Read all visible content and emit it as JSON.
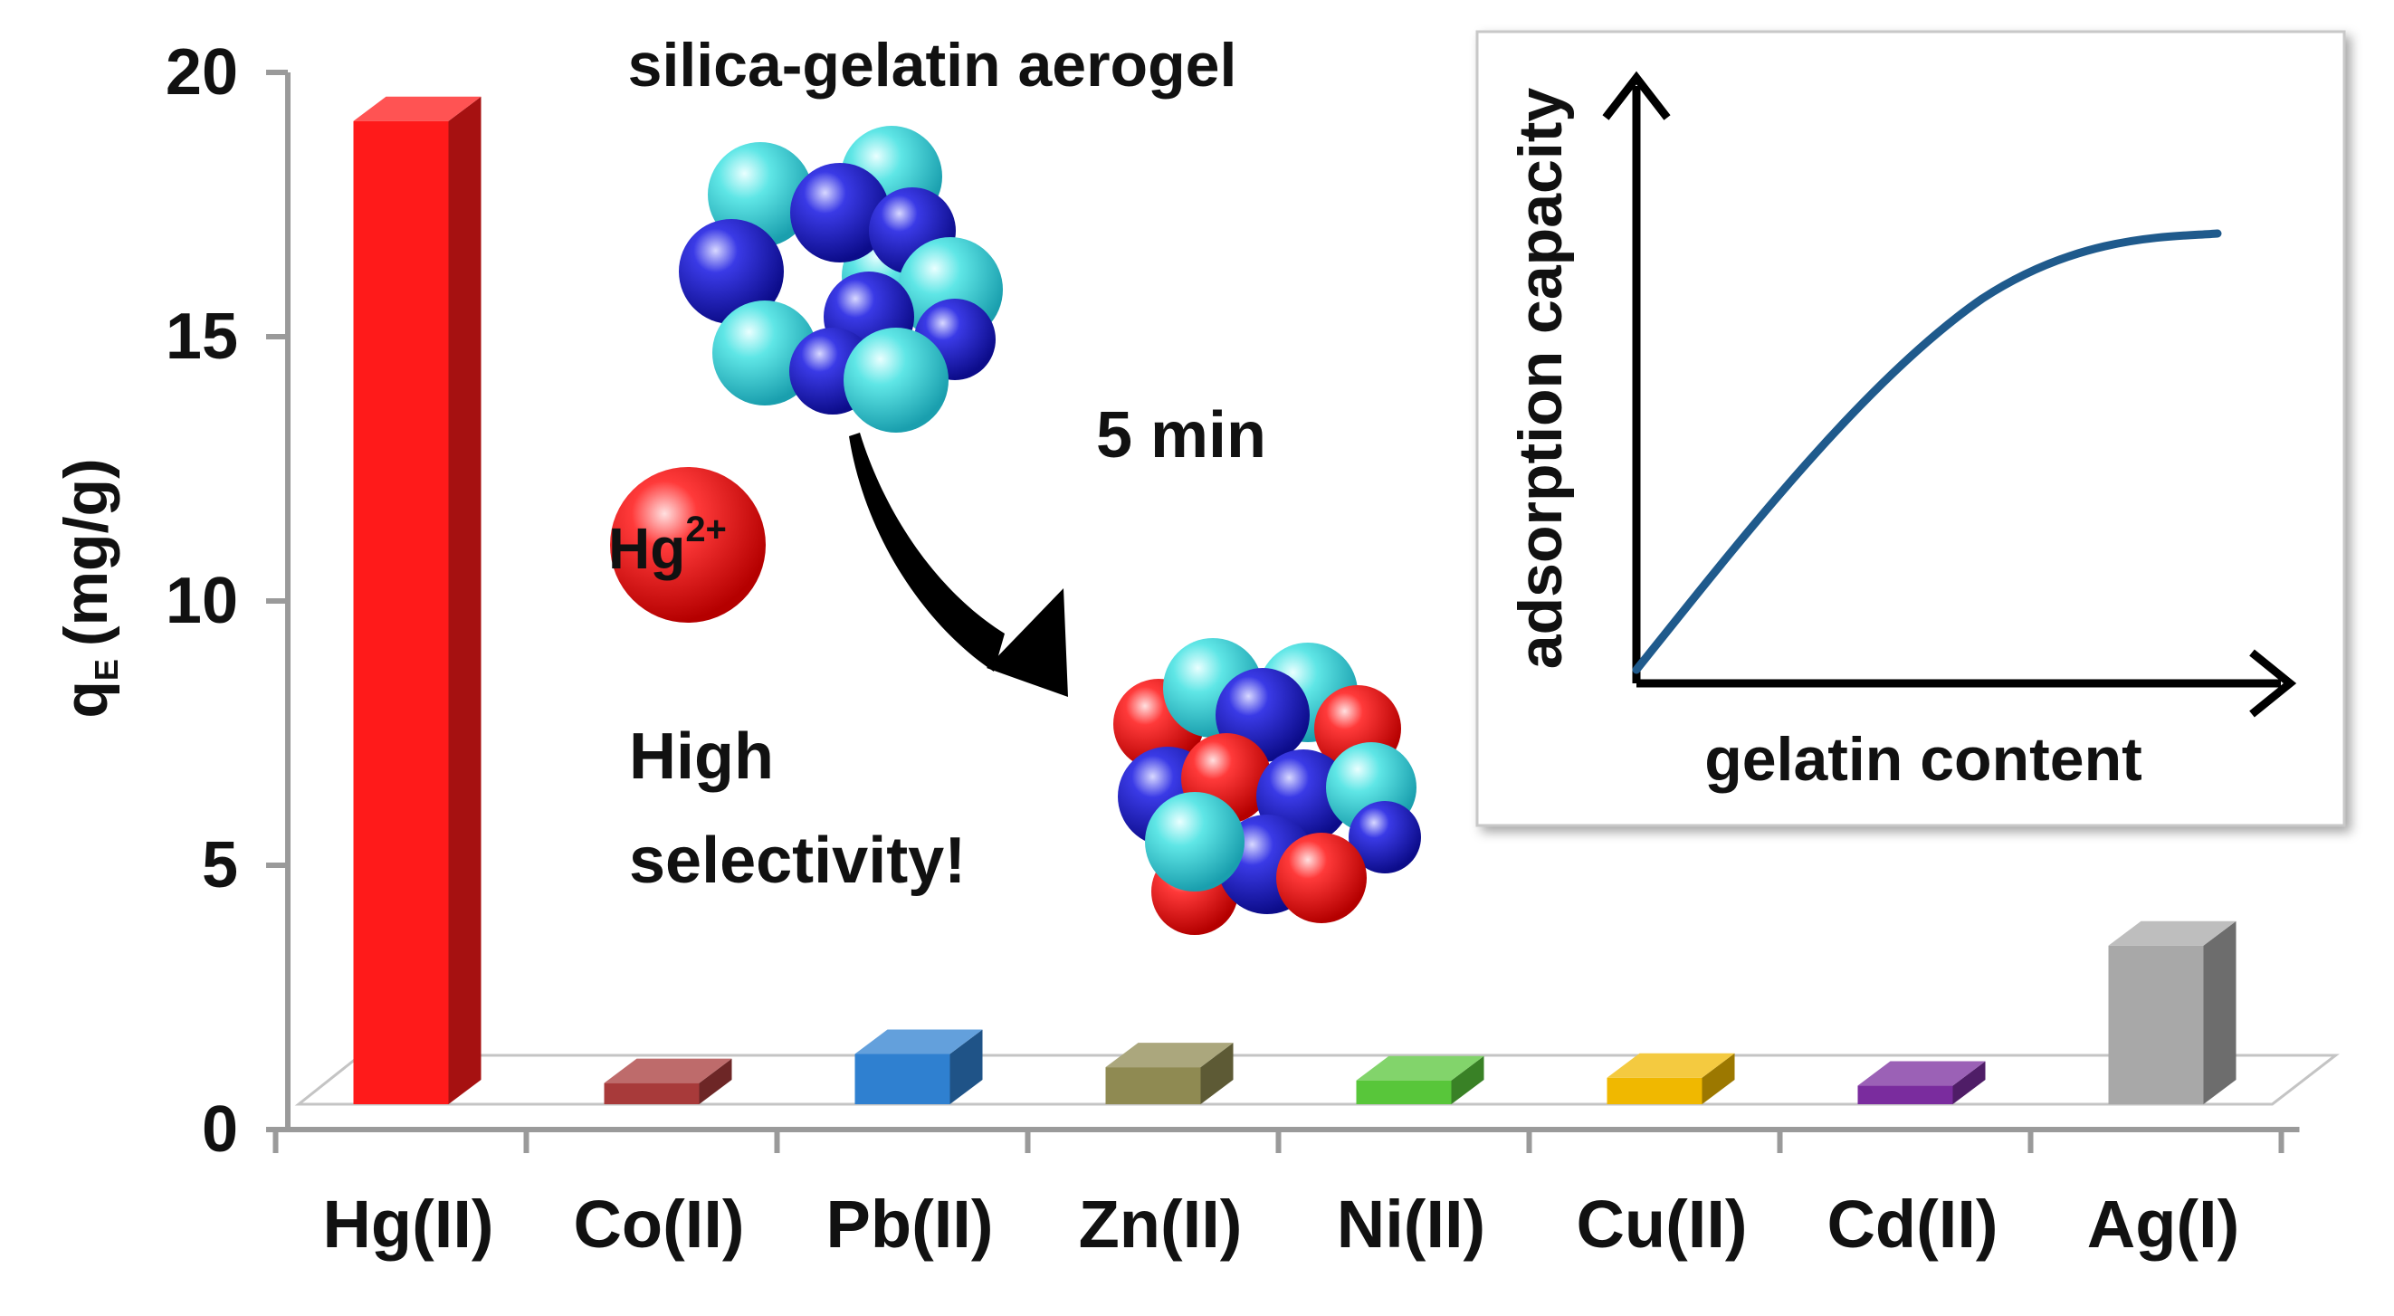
{
  "chart_data": {
    "type": "bar",
    "style": "3d",
    "categories": [
      "Hg(II)",
      "Co(II)",
      "Pb(II)",
      "Zn(II)",
      "Ni(II)",
      "Cu(II)",
      "Cd(II)",
      "Ag(I)"
    ],
    "values": [
      18.6,
      0.4,
      0.95,
      0.7,
      0.45,
      0.5,
      0.35,
      3.0
    ],
    "colors": [
      "#ff1a1a",
      "#a83a3a",
      "#2f80d0",
      "#8f8a52",
      "#58c63a",
      "#f0b800",
      "#7a2c9e",
      "#a8a8a8"
    ],
    "ylabel": "q",
    "ylabel_subscript": "E",
    "ylabel_unit": "(mg/g)",
    "ylim": [
      0,
      20
    ],
    "yticks": [
      0,
      5,
      10,
      15,
      20
    ],
    "grid": false,
    "legend": "none"
  },
  "annotations": {
    "aerogel_label": "silica-gelatin aerogel",
    "time_label": "5 min",
    "ion_label": "Hg",
    "ion_charge": "2+",
    "selectivity_line1": "High",
    "selectivity_line2": "selectivity!"
  },
  "inset": {
    "type": "line",
    "xlabel": "gelatin content",
    "ylabel": "adsorption capacity",
    "curve_color": "#1f5a8c"
  }
}
